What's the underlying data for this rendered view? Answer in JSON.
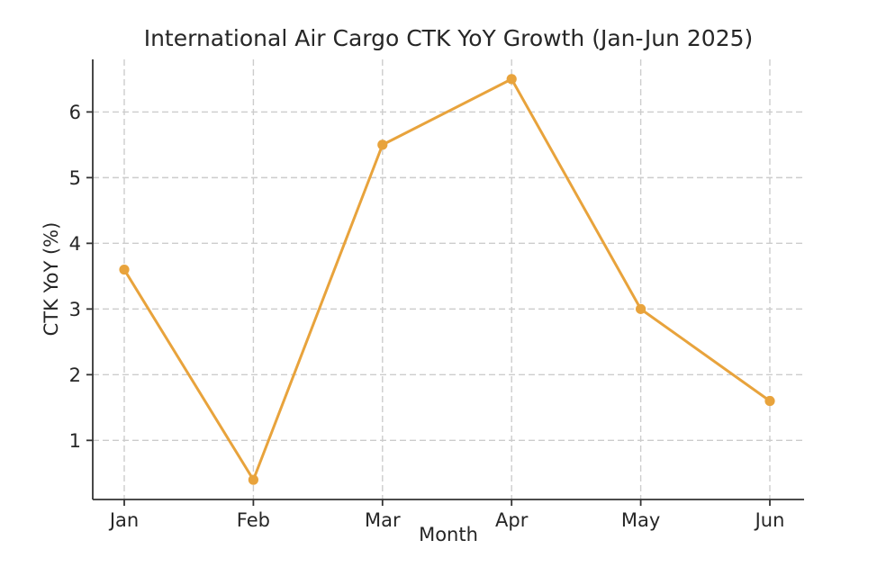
{
  "figure": {
    "background": "#ffffff"
  },
  "chart_data": {
    "type": "line",
    "title": "International Air Cargo CTK YoY Growth (Jan-Jun 2025)",
    "xlabel": "Month",
    "ylabel": "CTK YoY (%)",
    "categories": [
      "Jan",
      "Feb",
      "Mar",
      "Apr",
      "May",
      "Jun"
    ],
    "series": [
      {
        "name": "CTK YoY (%)",
        "values": [
          3.6,
          0.4,
          5.5,
          6.5,
          3.0,
          1.6
        ],
        "color": "#E8A33C",
        "marker": "circle"
      }
    ],
    "yticks": [
      1,
      2,
      3,
      4,
      5,
      6
    ],
    "ylim": [
      0.1,
      6.8
    ],
    "grid": true,
    "grid_style": "dashed",
    "grid_color": "#cccccc",
    "axis_color": "#333333",
    "text_color": "#262626",
    "legend": "none"
  }
}
